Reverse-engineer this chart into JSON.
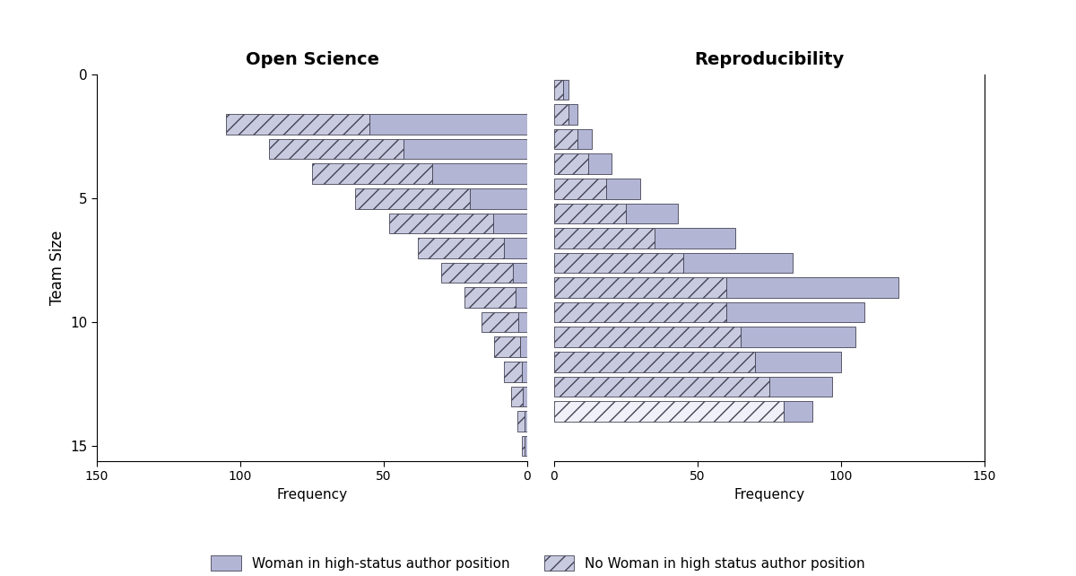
{
  "title_left": "Open Science",
  "title_right": "Reproducibility",
  "ylabel": "Team Size",
  "xlabel": "Frequency",
  "legend_woman": "Woman in high-status author position",
  "legend_no_woman": "No Woman in high status author position",
  "bar_color": "#b2b5d4",
  "hatch_facecolor": "#c8cae0",
  "hatch_facecolor_light": "#f0f0f8",
  "edge_color": "#444455",
  "team_sizes": [
    1,
    2,
    3,
    4,
    5,
    6,
    7,
    8,
    9,
    10,
    11,
    12,
    13,
    14,
    15
  ],
  "os_woman": [
    0,
    55,
    43,
    33,
    20,
    12,
    8,
    5,
    4,
    3,
    2.5,
    2,
    1.5,
    1,
    1
  ],
  "os_no_woman": [
    0,
    50,
    47,
    42,
    40,
    36,
    30,
    25,
    18,
    13,
    9,
    6,
    4,
    2.5,
    1
  ],
  "rep_no_woman": [
    0,
    80,
    75,
    70,
    65,
    60,
    60,
    45,
    35,
    25,
    18,
    12,
    8,
    5,
    3
  ],
  "rep_woman": [
    0,
    10,
    22,
    30,
    40,
    48,
    60,
    38,
    28,
    18,
    12,
    8,
    5,
    3,
    2
  ],
  "rep_no_woman_2_light": true,
  "xlim": 150,
  "bar_height": 0.82
}
